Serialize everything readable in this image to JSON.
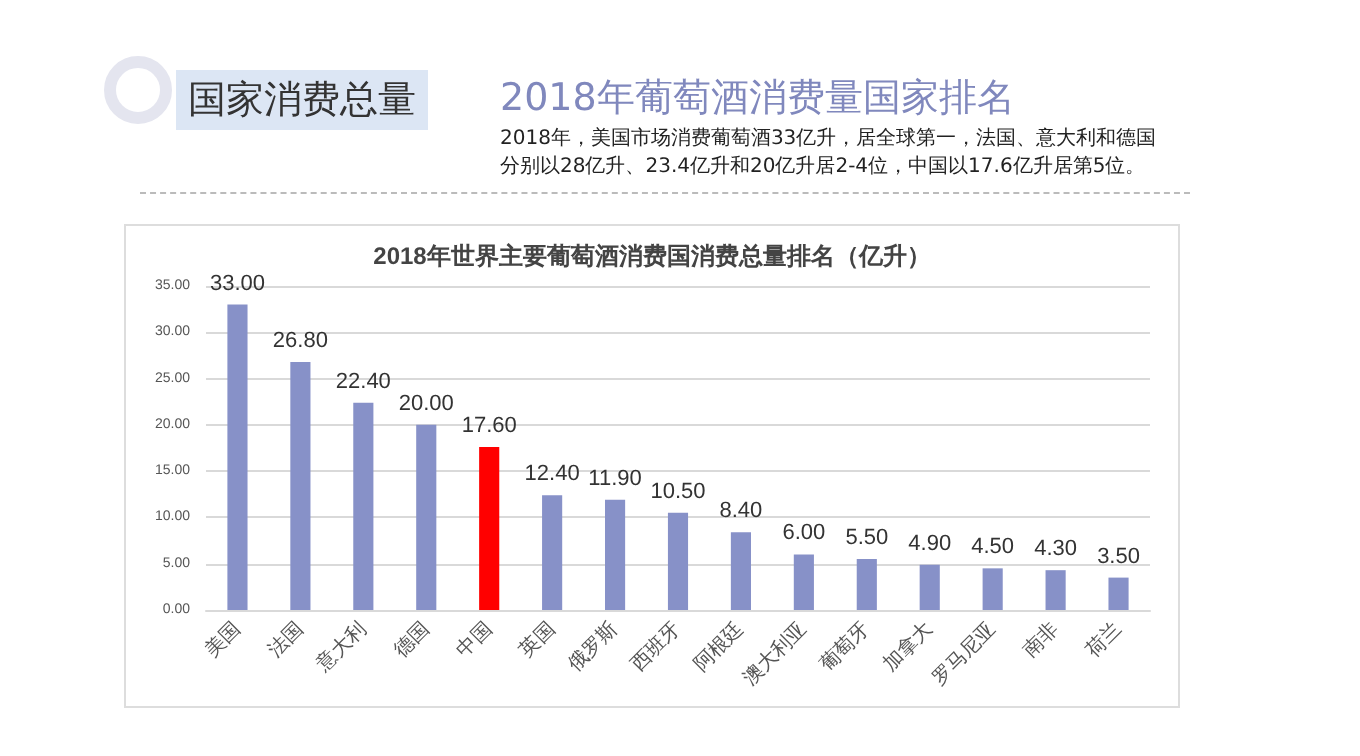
{
  "chart_data": {
    "type": "bar",
    "title": "2018年世界主要葡萄酒消费国消费总量排名（亿升）",
    "annotations": [
      "国家消费总量",
      "2018年葡萄酒消费量国家排名",
      "2018年，美国市场消费葡萄酒33亿升，居全球第一，法国、意大利和德国分别以28亿升、23.4亿升和20亿升居2-4位，中国以17.6亿升居第5位。"
    ],
    "categories": [
      "美国",
      "法国",
      "意大利",
      "德国",
      "中国",
      "英国",
      "俄罗斯",
      "西班牙",
      "阿根廷",
      "澳大利亚",
      "葡萄牙",
      "加拿大",
      "罗马尼亚",
      "南非",
      "荷兰"
    ],
    "values": [
      33.0,
      26.8,
      22.4,
      20.0,
      17.6,
      12.4,
      11.9,
      10.5,
      8.4,
      6.0,
      5.5,
      4.9,
      4.5,
      4.3,
      3.5
    ],
    "value_labels": [
      "33.00",
      "26.80",
      "22.40",
      "20.00",
      "17.60",
      "12.40",
      "11.90",
      "10.50",
      "8.40",
      "6.00",
      "5.50",
      "4.90",
      "4.50",
      "4.30",
      "3.50"
    ],
    "colors": [
      "#8791c8",
      "#8791c8",
      "#8791c8",
      "#8791c8",
      "#ff0000",
      "#8791c8",
      "#8791c8",
      "#8791c8",
      "#8791c8",
      "#8791c8",
      "#8791c8",
      "#8791c8",
      "#8791c8",
      "#8791c8",
      "#8791c8"
    ],
    "ylim": [
      0,
      35
    ],
    "yticks": [
      {
        "value": 0,
        "label": "0.00"
      },
      {
        "value": 5,
        "label": "5.00"
      },
      {
        "value": 10,
        "label": "10.00"
      },
      {
        "value": 15,
        "label": "15.00"
      },
      {
        "value": 20,
        "label": "20.00"
      },
      {
        "value": 25,
        "label": "25.00"
      },
      {
        "value": 30,
        "label": "30.00"
      },
      {
        "value": 35,
        "label": "35.00"
      }
    ],
    "grid": "y"
  }
}
